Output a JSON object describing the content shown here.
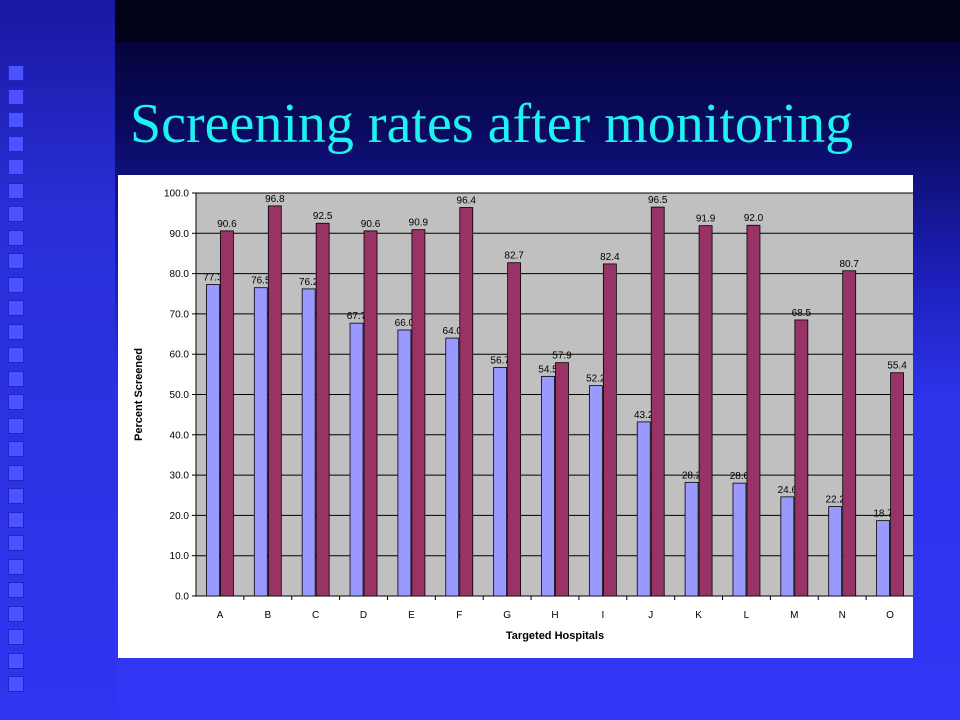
{
  "slide": {
    "title": "Screening rates after monitoring",
    "colors": {
      "title": "#1ff0f0",
      "background": "#2f35f0"
    }
  },
  "chart_data": {
    "type": "bar",
    "title": "",
    "xlabel": "Targeted Hospitals",
    "ylabel": "Percent Screened",
    "categories": [
      "A",
      "B",
      "C",
      "D",
      "E",
      "F",
      "G",
      "H",
      "I",
      "J",
      "K",
      "L",
      "M",
      "N",
      "O"
    ],
    "series": [
      {
        "values": [
          77.3,
          76.5,
          76.2,
          67.7,
          66.0,
          64.0,
          56.7,
          54.5,
          52.2,
          43.2,
          28.2,
          28.0,
          24.6,
          22.2,
          18.7
        ],
        "color": "#9999ff"
      },
      {
        "values": [
          90.6,
          96.8,
          92.5,
          90.6,
          90.9,
          96.4,
          82.7,
          57.9,
          82.4,
          96.5,
          91.9,
          92.0,
          68.5,
          80.7,
          55.4
        ],
        "color": "#993366"
      }
    ],
    "ylim": [
      0,
      100
    ],
    "yticks": [
      "0.0",
      "10.0",
      "20.0",
      "30.0",
      "40.0",
      "50.0",
      "60.0",
      "70.0",
      "80.0",
      "90.0",
      "100.0"
    ],
    "grid": true,
    "legend": "none",
    "plot_background": "#c0c0c0"
  }
}
